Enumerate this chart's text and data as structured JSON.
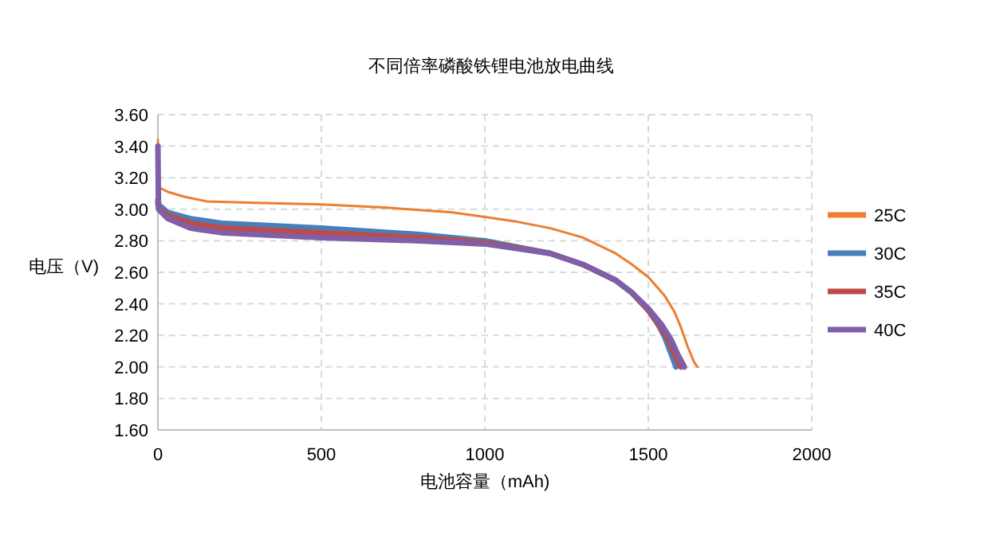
{
  "chart_data": {
    "type": "line",
    "title": "不同倍率磷酸铁锂电池放电曲线",
    "xlabel": "电池容量（mAh)",
    "ylabel": "电压（V)",
    "xlim": [
      0,
      2000
    ],
    "xticks": [
      0,
      500,
      1000,
      1500,
      2000
    ],
    "ylim": [
      1.6,
      3.6
    ],
    "yticks": [
      {
        "value": 1.6,
        "label": "1.60"
      },
      {
        "value": 1.8,
        "label": "1.80"
      },
      {
        "value": 2.0,
        "label": "2.00"
      },
      {
        "value": 2.2,
        "label": "2.20"
      },
      {
        "value": 2.4,
        "label": "2.40"
      },
      {
        "value": 2.6,
        "label": "2.60"
      },
      {
        "value": 2.8,
        "label": "2.80"
      },
      {
        "value": 3.0,
        "label": "3.00"
      },
      {
        "value": 3.2,
        "label": "3.20"
      },
      {
        "value": 3.4,
        "label": "3.40"
      },
      {
        "value": 3.6,
        "label": "3.60"
      }
    ],
    "grid": true,
    "legend": "right",
    "marker": "none",
    "line_style": "solid",
    "series": [
      {
        "name": "25C",
        "color": "#ed7d31",
        "x": [
          0,
          2,
          30,
          80,
          150,
          300,
          500,
          700,
          900,
          1000,
          1100,
          1200,
          1300,
          1400,
          1450,
          1500,
          1550,
          1580,
          1600,
          1620,
          1640,
          1650
        ],
        "values": [
          3.44,
          3.14,
          3.11,
          3.08,
          3.05,
          3.04,
          3.03,
          3.01,
          2.98,
          2.95,
          2.92,
          2.88,
          2.82,
          2.72,
          2.65,
          2.57,
          2.45,
          2.35,
          2.25,
          2.13,
          2.03,
          2.0
        ]
      },
      {
        "name": "30C",
        "color": "#4a7ebb",
        "x": [
          0,
          2,
          30,
          100,
          200,
          500,
          800,
          1000,
          1200,
          1300,
          1400,
          1450,
          1500,
          1530,
          1550,
          1570,
          1585
        ],
        "values": [
          3.06,
          3.03,
          2.98,
          2.94,
          2.91,
          2.88,
          2.84,
          2.8,
          2.72,
          2.65,
          2.55,
          2.47,
          2.36,
          2.27,
          2.19,
          2.08,
          2.0
        ]
      },
      {
        "name": "35C",
        "color": "#be4b48",
        "x": [
          0,
          2,
          30,
          100,
          200,
          500,
          800,
          1000,
          1200,
          1300,
          1400,
          1450,
          1500,
          1530,
          1560,
          1580,
          1600
        ],
        "values": [
          3.04,
          3.01,
          2.96,
          2.91,
          2.88,
          2.85,
          2.82,
          2.79,
          2.72,
          2.65,
          2.55,
          2.47,
          2.36,
          2.28,
          2.18,
          2.08,
          2.0
        ]
      },
      {
        "name": "40C",
        "color": "#7f5fa8",
        "x": [
          0,
          2,
          30,
          100,
          200,
          500,
          800,
          1000,
          1200,
          1300,
          1400,
          1450,
          1500,
          1540,
          1570,
          1590,
          1610
        ],
        "values": [
          3.4,
          3.0,
          2.94,
          2.88,
          2.85,
          2.82,
          2.8,
          2.78,
          2.72,
          2.65,
          2.55,
          2.47,
          2.37,
          2.27,
          2.17,
          2.08,
          2.0
        ]
      }
    ]
  }
}
